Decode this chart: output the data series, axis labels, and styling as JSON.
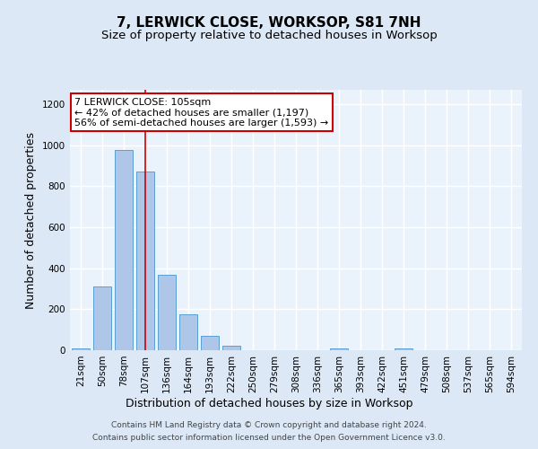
{
  "title": "7, LERWICK CLOSE, WORKSOP, S81 7NH",
  "subtitle": "Size of property relative to detached houses in Worksop",
  "xlabel": "Distribution of detached houses by size in Worksop",
  "ylabel": "Number of detached properties",
  "footer1": "Contains HM Land Registry data © Crown copyright and database right 2024.",
  "footer2": "Contains public sector information licensed under the Open Government Licence v3.0.",
  "categories": [
    "21sqm",
    "50sqm",
    "78sqm",
    "107sqm",
    "136sqm",
    "164sqm",
    "193sqm",
    "222sqm",
    "250sqm",
    "279sqm",
    "308sqm",
    "336sqm",
    "365sqm",
    "393sqm",
    "422sqm",
    "451sqm",
    "479sqm",
    "508sqm",
    "537sqm",
    "565sqm",
    "594sqm"
  ],
  "values": [
    10,
    310,
    975,
    870,
    370,
    175,
    70,
    20,
    0,
    0,
    0,
    0,
    10,
    0,
    0,
    10,
    0,
    0,
    0,
    0,
    0
  ],
  "bar_color": "#aec6e8",
  "bar_edge_color": "#5a9fd4",
  "vline_x_index": 3,
  "vline_color": "#cc0000",
  "annotation_text": "7 LERWICK CLOSE: 105sqm\n← 42% of detached houses are smaller (1,197)\n56% of semi-detached houses are larger (1,593) →",
  "annotation_box_color": "#ffffff",
  "annotation_box_edge": "#cc0000",
  "ylim": [
    0,
    1270
  ],
  "yticks": [
    0,
    200,
    400,
    600,
    800,
    1000,
    1200
  ],
  "bg_color": "#dce8f5",
  "plot_bg_color": "#eaf3fb",
  "grid_color": "#ffffff",
  "title_fontsize": 11,
  "subtitle_fontsize": 9.5,
  "label_fontsize": 9,
  "tick_fontsize": 7.5,
  "footer_fontsize": 6.5,
  "annotation_fontsize": 8
}
